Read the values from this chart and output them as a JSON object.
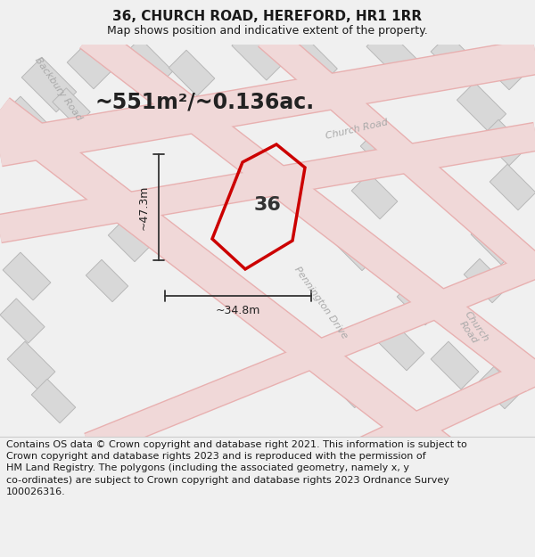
{
  "title": "36, CHURCH ROAD, HEREFORD, HR1 1RR",
  "subtitle": "Map shows position and indicative extent of the property.",
  "area_text": "~551m²/~0.136ac.",
  "label_36": "36",
  "dim_height": "~47.3m",
  "dim_width": "~34.8m",
  "road_label_church1": "Church Road",
  "road_label_church2": "Church\nRoad",
  "road_label_backbury": "Backbury Road",
  "road_label_pennington": "Pennington Drive",
  "footer_line1": "Contains OS data © Crown copyright and database right 2021. This information is subject",
  "footer_line2": "to Crown copyright and database rights 2023 and is reproduced with the permission of",
  "footer_line3": "HM Land Registry. The polygons (including the associated geometry, namely x, y",
  "footer_line4": "co-ordinates) are subject to Crown copyright and database rights 2023 Ordnance Survey",
  "footer_line5": "100026316.",
  "bg_color": "#f0f0f0",
  "map_bg": "#f8f8f8",
  "footer_bg": "#ffffff",
  "road_fill": "#f0d8d8",
  "road_edge": "#e8b0b0",
  "building_fill": "#d8d8d8",
  "building_edge": "#b8b8b8",
  "poly_color": "#cc0000",
  "dim_color": "#333333",
  "road_text_color": "#aaaaaa",
  "title_fontsize": 11,
  "subtitle_fontsize": 9,
  "area_fontsize": 17,
  "label_fontsize": 16,
  "dim_fontsize": 9,
  "road_label_fontsize": 8,
  "footer_fontsize": 8
}
